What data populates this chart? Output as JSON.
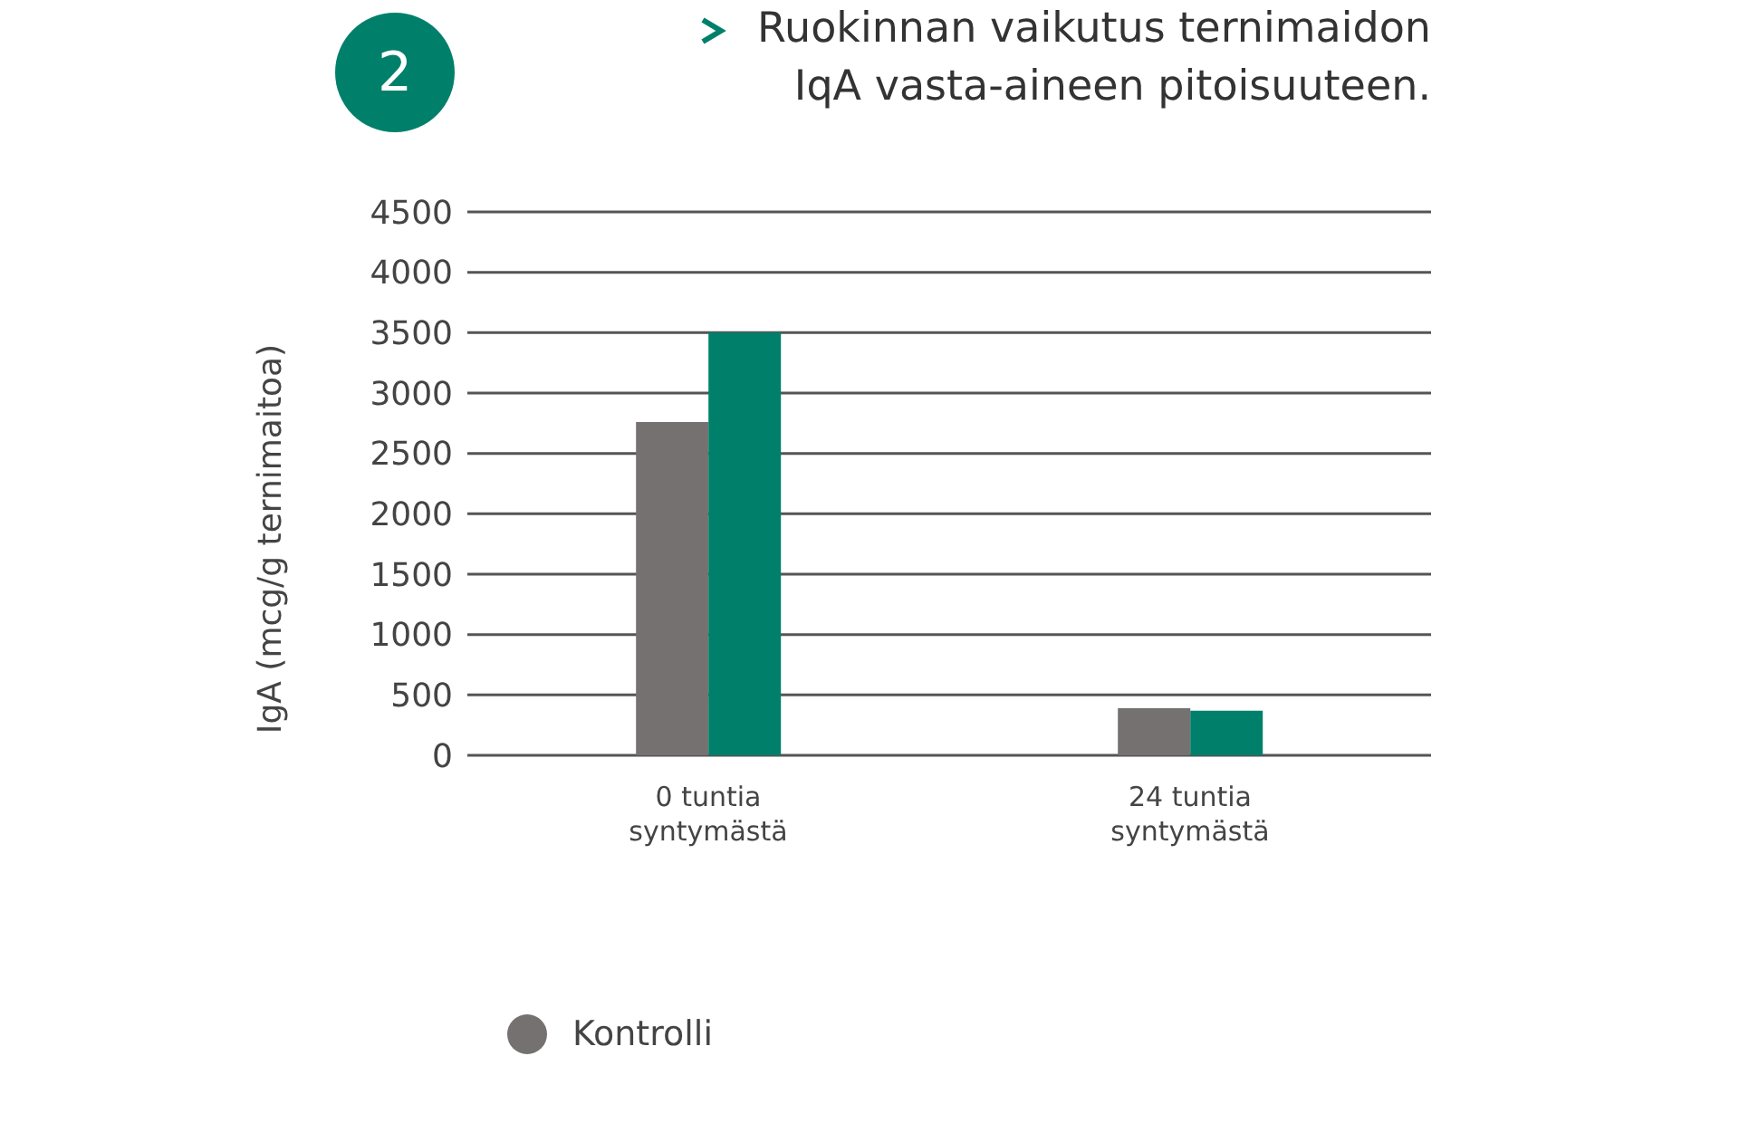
{
  "chart_data": {
    "type": "bar",
    "title": "Ruokinnan vaikutus ternimaidon IqA vasta-aineen pitoisuuteen.",
    "ylabel": "IgA (mcg/g ternimaitoa)",
    "annotations": [
      "2"
    ],
    "categories": [
      "0 tuntia syntymästä",
      "24 tuntia syntymästä"
    ],
    "series": [
      {
        "name": "Kontrolli",
        "color": "#767171",
        "values": [
          2760,
          390
        ]
      },
      {
        "color": "#00806a",
        "values": [
          3500,
          370
        ]
      }
    ],
    "ylim": [
      0,
      4500
    ],
    "yticks": [
      0,
      500,
      1000,
      1500,
      2000,
      2500,
      3000,
      3500,
      4000,
      4500
    ],
    "grid": "y",
    "legend": "bottom"
  }
}
